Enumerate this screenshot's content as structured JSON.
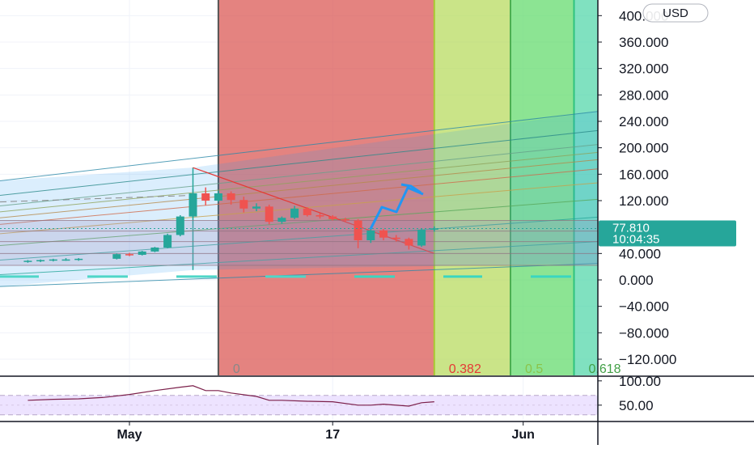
{
  "currency_button": "USD",
  "last_price": {
    "value": "77.810",
    "countdown": "10:04:35",
    "color": "#26a69a"
  },
  "colors": {
    "zone_0": "#d9534f",
    "zone_0382": "#b5d95a",
    "zone_05": "#5fd96a",
    "zone_0618": "#4fd6a8",
    "up": "#26a69a",
    "down": "#ef5350",
    "rsi_line": "#7b1f4a",
    "rsi_band": "#e9dcff",
    "arrow": "#2196f3"
  },
  "fib_time_zones": [
    {
      "label": "0",
      "start": "2021-05-08",
      "end": "2021-05-25"
    },
    {
      "label": "0.382",
      "start": "2021-05-25",
      "end": "2021-05-31"
    },
    {
      "label": "0.5",
      "start": "2021-05-31",
      "end": "2021-06-05"
    },
    {
      "label": "0.618",
      "start": "2021-06-05",
      "end": "2021-06-15"
    }
  ],
  "chart_data": [
    {
      "type": "candlestick",
      "xlabel": "",
      "ylabel": "",
      "x_ticks": [
        "May",
        "17",
        "Jun"
      ],
      "x_tick_dates": [
        "2021-05-01",
        "2021-05-17",
        "2021-06-01"
      ],
      "y_ticks": [
        "400.000",
        "360.000",
        "320.000",
        "280.000",
        "240.000",
        "200.000",
        "160.000",
        "120.000",
        "40.000",
        "0.000",
        "−40.000",
        "−80.000",
        "−120.000"
      ],
      "y_tick_values": [
        400,
        360,
        320,
        280,
        240,
        200,
        160,
        120,
        40,
        0,
        -40,
        -80,
        -120
      ],
      "ylim": [
        -135,
        410
      ],
      "grid": true,
      "candles": [
        {
          "date": "2021-04-23",
          "open": 28,
          "high": 30,
          "low": 26,
          "close": 29
        },
        {
          "date": "2021-04-24",
          "open": 29,
          "high": 31,
          "low": 27,
          "close": 30
        },
        {
          "date": "2021-04-25",
          "open": 30,
          "high": 32,
          "low": 28,
          "close": 31
        },
        {
          "date": "2021-04-26",
          "open": 31,
          "high": 33,
          "low": 29,
          "close": 31
        },
        {
          "date": "2021-04-27",
          "open": 31,
          "high": 33,
          "low": 29,
          "close": 32
        },
        {
          "date": "2021-04-30",
          "open": 32,
          "high": 40,
          "low": 31,
          "close": 39
        },
        {
          "date": "2021-05-01",
          "open": 39,
          "high": 41,
          "low": 36,
          "close": 38
        },
        {
          "date": "2021-05-02",
          "open": 38,
          "high": 44,
          "low": 37,
          "close": 43
        },
        {
          "date": "2021-05-03",
          "open": 43,
          "high": 50,
          "low": 42,
          "close": 49
        },
        {
          "date": "2021-05-04",
          "open": 49,
          "high": 70,
          "low": 48,
          "close": 68
        },
        {
          "date": "2021-05-05",
          "open": 68,
          "high": 98,
          "low": 66,
          "close": 96
        },
        {
          "date": "2021-05-06",
          "open": 96,
          "high": 138,
          "low": 94,
          "close": 131
        },
        {
          "date": "2021-05-07",
          "open": 131,
          "high": 140,
          "low": 113,
          "close": 120
        },
        {
          "date": "2021-05-08",
          "open": 120,
          "high": 135,
          "low": 118,
          "close": 131
        },
        {
          "date": "2021-05-09",
          "open": 131,
          "high": 134,
          "low": 114,
          "close": 121
        },
        {
          "date": "2021-05-10",
          "open": 121,
          "high": 126,
          "low": 102,
          "close": 108
        },
        {
          "date": "2021-05-11",
          "open": 108,
          "high": 116,
          "low": 104,
          "close": 111
        },
        {
          "date": "2021-05-12",
          "open": 111,
          "high": 114,
          "low": 84,
          "close": 88
        },
        {
          "date": "2021-05-13",
          "open": 88,
          "high": 96,
          "low": 85,
          "close": 94
        },
        {
          "date": "2021-05-14",
          "open": 94,
          "high": 112,
          "low": 92,
          "close": 108
        },
        {
          "date": "2021-05-15",
          "open": 108,
          "high": 110,
          "low": 96,
          "close": 98
        },
        {
          "date": "2021-05-16",
          "open": 98,
          "high": 101,
          "low": 93,
          "close": 96
        },
        {
          "date": "2021-05-17",
          "open": 96,
          "high": 98,
          "low": 90,
          "close": 92
        },
        {
          "date": "2021-05-18",
          "open": 92,
          "high": 94,
          "low": 88,
          "close": 90
        },
        {
          "date": "2021-05-19",
          "open": 90,
          "high": 92,
          "low": 48,
          "close": 60
        },
        {
          "date": "2021-05-20",
          "open": 60,
          "high": 78,
          "low": 56,
          "close": 75
        },
        {
          "date": "2021-05-21",
          "open": 75,
          "high": 77,
          "low": 60,
          "close": 64
        },
        {
          "date": "2021-05-22",
          "open": 64,
          "high": 68,
          "low": 58,
          "close": 62
        },
        {
          "date": "2021-05-23",
          "open": 62,
          "high": 64,
          "low": 46,
          "close": 52
        },
        {
          "date": "2021-05-24",
          "open": 52,
          "high": 78,
          "low": 50,
          "close": 76
        },
        {
          "date": "2021-05-25",
          "open": 76,
          "high": 81,
          "low": 73,
          "close": 78
        }
      ],
      "annotations": [
        "0",
        "0.382",
        "0.5",
        "0.618"
      ]
    },
    {
      "type": "line",
      "name": "RSI pane",
      "y_ticks": [
        "100.00",
        "50.00"
      ],
      "y_tick_values": [
        100,
        50
      ],
      "ylim": [
        18,
        108
      ],
      "band": [
        30,
        70
      ],
      "x": [
        "2021-04-23",
        "2021-04-25",
        "2021-04-27",
        "2021-04-29",
        "2021-05-01",
        "2021-05-03",
        "2021-05-05",
        "2021-05-06",
        "2021-05-07",
        "2021-05-08",
        "2021-05-09",
        "2021-05-11",
        "2021-05-12",
        "2021-05-13",
        "2021-05-15",
        "2021-05-17",
        "2021-05-19",
        "2021-05-20",
        "2021-05-21",
        "2021-05-23",
        "2021-05-24",
        "2021-05-25"
      ],
      "values": [
        60,
        62,
        63,
        66,
        72,
        80,
        87,
        90,
        80,
        80,
        75,
        68,
        60,
        60,
        58,
        57,
        50,
        50,
        52,
        48,
        55,
        57
      ]
    }
  ]
}
